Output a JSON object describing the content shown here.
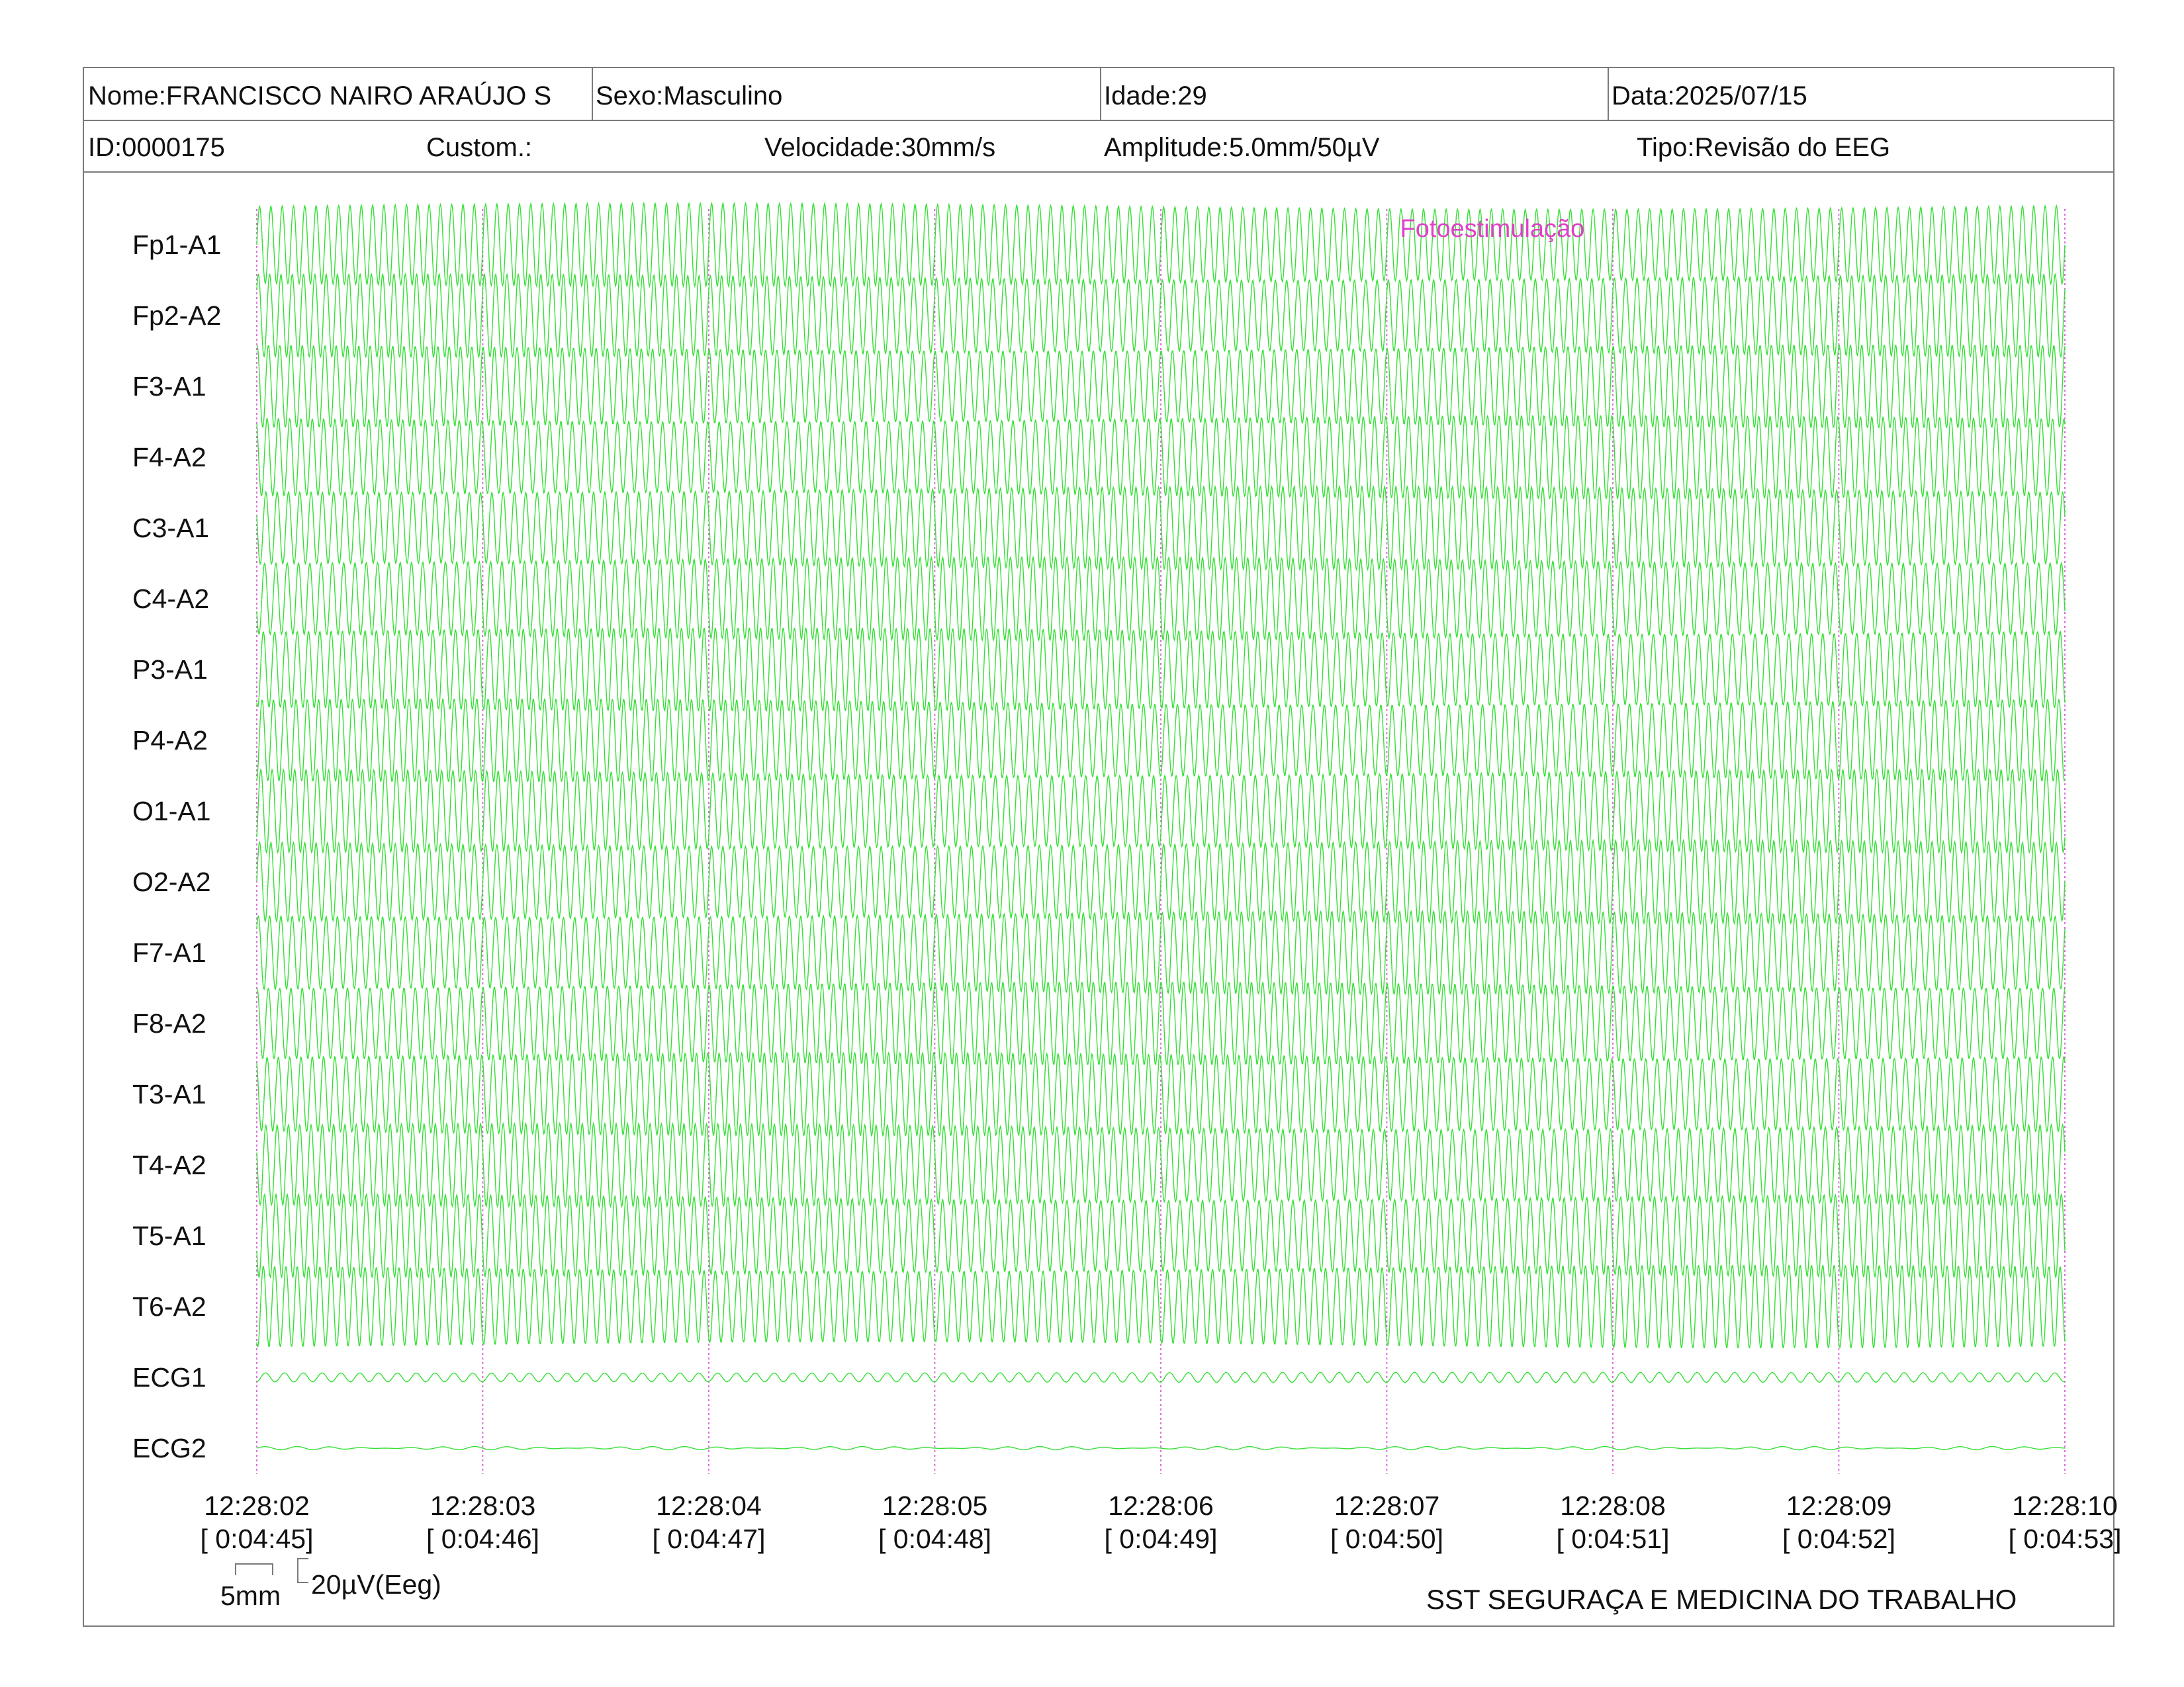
{
  "header": {
    "name": "Nome:FRANCISCO NAIRO ARAÚJO S",
    "sex": "Sexo:Masculino",
    "age": "Idade:29",
    "date": "Data:2025/07/15",
    "id": "ID:0000175",
    "custom": "Custom.:",
    "speed": "Velocidade:30mm/s",
    "amplitude": "Amplitude:5.0mm/50µV",
    "type": "Tipo:Revisão do EEG"
  },
  "footer": {
    "scale_time": "5mm",
    "scale_amp": "20µV(Eeg)",
    "organization": "SST SEGURAÇA E MEDICINA DO TRABALHO"
  },
  "colors": {
    "trace": "#35e035",
    "marker": "#d548d5",
    "annotation": "#e040c8",
    "frame": "#7a7a7a"
  },
  "chart_data": {
    "type": "line",
    "title": "",
    "channels": [
      "Fp1-A1",
      "Fp2-A2",
      "F3-A1",
      "F4-A2",
      "C3-A1",
      "C4-A2",
      "P3-A1",
      "P4-A2",
      "O1-A1",
      "O2-A2",
      "F7-A1",
      "F8-A2",
      "T3-A1",
      "T4-A2",
      "T5-A1",
      "T6-A2",
      "ECG1",
      "ECG2"
    ],
    "time_ticks": [
      {
        "clock": "12:28:02",
        "elapsed": "[ 0:04:45]"
      },
      {
        "clock": "12:28:03",
        "elapsed": "[ 0:04:46]"
      },
      {
        "clock": "12:28:04",
        "elapsed": "[ 0:04:47]"
      },
      {
        "clock": "12:28:05",
        "elapsed": "[ 0:04:48]"
      },
      {
        "clock": "12:28:06",
        "elapsed": "[ 0:04:49]"
      },
      {
        "clock": "12:28:07",
        "elapsed": "[ 0:04:50]"
      },
      {
        "clock": "12:28:08",
        "elapsed": "[ 0:04:51]"
      },
      {
        "clock": "12:28:09",
        "elapsed": "[ 0:04:52]"
      },
      {
        "clock": "12:28:10",
        "elapsed": "[ 0:04:53]"
      }
    ],
    "x_range_seconds": [
      0,
      8
    ],
    "eeg_oscillation_hz": 20,
    "ecg1_oscillation_hz": 12,
    "annotations": [
      {
        "text": "Fotoestimulação",
        "time": "12:28:07"
      }
    ],
    "grid": "dotted vertical line per second"
  }
}
